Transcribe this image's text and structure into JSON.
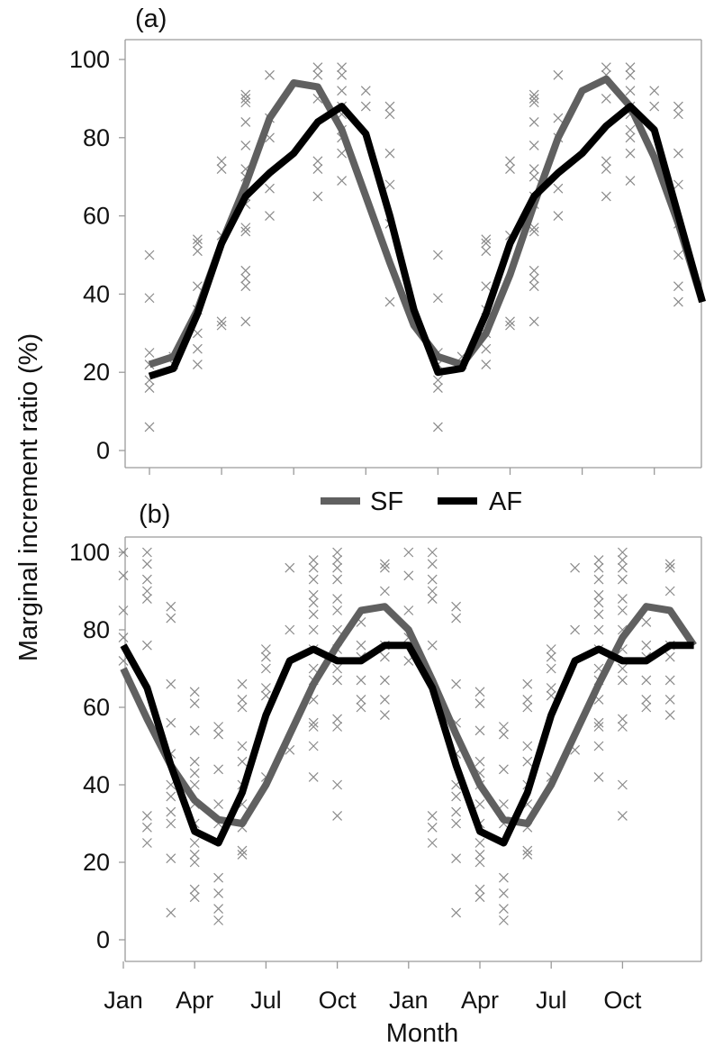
{
  "colors": {
    "SF": "#606060",
    "AF": "#000000",
    "obs": "#8a8a8a",
    "axis": "#9a9a9a"
  },
  "axes": {
    "ylabel": "Marginal increment ratio (%)",
    "xlabel": "Month"
  },
  "legend": [
    {
      "name": "SF"
    },
    {
      "name": "AF"
    }
  ],
  "chart_data": [
    {
      "type": "line",
      "panel": "(a)",
      "ylim": [
        0,
        100
      ],
      "yticks": [
        0,
        20,
        40,
        60,
        80,
        100
      ],
      "grid": false,
      "legend_placement": "between panels",
      "series": [
        {
          "name": "SF",
          "values": [
            22,
            24,
            36,
            53,
            68,
            85,
            94,
            93,
            82,
            65,
            48,
            32,
            24,
            22,
            30,
            45,
            63,
            80,
            92,
            95,
            88,
            75,
            58,
            38
          ]
        },
        {
          "name": "AF",
          "values": [
            19,
            21,
            35,
            53,
            65,
            71,
            76,
            84,
            88,
            81,
            60,
            36,
            20,
            21,
            35,
            53,
            65,
            71,
            76,
            83,
            88,
            82,
            60,
            38
          ]
        }
      ],
      "observations": [
        [
          1,
          25
        ],
        [
          1,
          22
        ],
        [
          1,
          18
        ],
        [
          1,
          16
        ],
        [
          1,
          39
        ],
        [
          1,
          50
        ],
        [
          1,
          6
        ],
        [
          2,
          22
        ],
        [
          2,
          24
        ],
        [
          3,
          22
        ],
        [
          3,
          26
        ],
        [
          3,
          30
        ],
        [
          3,
          36
        ],
        [
          3,
          42
        ],
        [
          3,
          51
        ],
        [
          3,
          53
        ],
        [
          3,
          54
        ],
        [
          4,
          33
        ],
        [
          4,
          32
        ],
        [
          4,
          72
        ],
        [
          4,
          74
        ],
        [
          4,
          55
        ],
        [
          5,
          33
        ],
        [
          5,
          42
        ],
        [
          5,
          44
        ],
        [
          5,
          46
        ],
        [
          5,
          56
        ],
        [
          5,
          57
        ],
        [
          5,
          63
        ],
        [
          5,
          65
        ],
        [
          5,
          70
        ],
        [
          5,
          72
        ],
        [
          5,
          78
        ],
        [
          5,
          84
        ],
        [
          5,
          89
        ],
        [
          5,
          90
        ],
        [
          5,
          91
        ],
        [
          6,
          60
        ],
        [
          6,
          67
        ],
        [
          6,
          80
        ],
        [
          6,
          85
        ],
        [
          6,
          96
        ],
        [
          8,
          65
        ],
        [
          8,
          72
        ],
        [
          8,
          74
        ],
        [
          8,
          90
        ],
        [
          8,
          96
        ],
        [
          8,
          98
        ],
        [
          9,
          69
        ],
        [
          9,
          76
        ],
        [
          9,
          80
        ],
        [
          9,
          82
        ],
        [
          9,
          86
        ],
        [
          9,
          88
        ],
        [
          9,
          92
        ],
        [
          9,
          96
        ],
        [
          9,
          98
        ],
        [
          10,
          92
        ],
        [
          10,
          88
        ],
        [
          11,
          86
        ],
        [
          11,
          88
        ],
        [
          11,
          76
        ],
        [
          11,
          68
        ],
        [
          11,
          58
        ],
        [
          11,
          38
        ],
        [
          13,
          50
        ],
        [
          13,
          39
        ],
        [
          13,
          25
        ],
        [
          13,
          22
        ],
        [
          13,
          18
        ],
        [
          13,
          16
        ],
        [
          13,
          6
        ],
        [
          14,
          22
        ],
        [
          14,
          24
        ],
        [
          15,
          22
        ],
        [
          15,
          26
        ],
        [
          15,
          30
        ],
        [
          15,
          36
        ],
        [
          15,
          42
        ],
        [
          15,
          51
        ],
        [
          15,
          53
        ],
        [
          15,
          54
        ],
        [
          16,
          33
        ],
        [
          16,
          32
        ],
        [
          16,
          72
        ],
        [
          16,
          74
        ],
        [
          16,
          55
        ],
        [
          17,
          33
        ],
        [
          17,
          42
        ],
        [
          17,
          44
        ],
        [
          17,
          46
        ],
        [
          17,
          56
        ],
        [
          17,
          57
        ],
        [
          17,
          63
        ],
        [
          17,
          65
        ],
        [
          17,
          70
        ],
        [
          17,
          72
        ],
        [
          17,
          78
        ],
        [
          17,
          84
        ],
        [
          17,
          89
        ],
        [
          17,
          90
        ],
        [
          17,
          91
        ],
        [
          18,
          60
        ],
        [
          18,
          67
        ],
        [
          18,
          80
        ],
        [
          18,
          85
        ],
        [
          18,
          96
        ],
        [
          20,
          65
        ],
        [
          20,
          72
        ],
        [
          20,
          74
        ],
        [
          20,
          90
        ],
        [
          20,
          96
        ],
        [
          20,
          98
        ],
        [
          21,
          69
        ],
        [
          21,
          76
        ],
        [
          21,
          80
        ],
        [
          21,
          82
        ],
        [
          21,
          86
        ],
        [
          21,
          88
        ],
        [
          21,
          92
        ],
        [
          21,
          96
        ],
        [
          21,
          98
        ],
        [
          22,
          92
        ],
        [
          22,
          88
        ],
        [
          23,
          86
        ],
        [
          23,
          88
        ],
        [
          23,
          76
        ],
        [
          23,
          68
        ],
        [
          23,
          58
        ],
        [
          23,
          38
        ],
        [
          23,
          42
        ],
        [
          23,
          50
        ]
      ]
    },
    {
      "type": "line",
      "panel": "(b)",
      "ylim": [
        0,
        100
      ],
      "yticks": [
        0,
        20,
        40,
        60,
        80,
        100
      ],
      "grid": false,
      "x_tick_labels": [
        "Jan",
        "Apr",
        "Jul",
        "Oct",
        "Jan",
        "Apr",
        "Jul",
        "Oct"
      ],
      "series": [
        {
          "name": "SF",
          "values": [
            70,
            57,
            45,
            36,
            31,
            30,
            40,
            53,
            66,
            76,
            85,
            86,
            80,
            67,
            53,
            40,
            31,
            30,
            40,
            53,
            66,
            78,
            86,
            85,
            76
          ]
        },
        {
          "name": "AF",
          "values": [
            76,
            65,
            45,
            28,
            25,
            38,
            58,
            72,
            75,
            72,
            72,
            76,
            76,
            65,
            45,
            28,
            25,
            38,
            58,
            72,
            75,
            72,
            72,
            76,
            76
          ]
        }
      ],
      "observations": [
        [
          1,
          100
        ],
        [
          1,
          94
        ],
        [
          1,
          85
        ],
        [
          1,
          78
        ],
        [
          1,
          72
        ],
        [
          2,
          100
        ],
        [
          2,
          97
        ],
        [
          2,
          93
        ],
        [
          2,
          90
        ],
        [
          2,
          88
        ],
        [
          2,
          76
        ],
        [
          2,
          32
        ],
        [
          2,
          29
        ],
        [
          2,
          25
        ],
        [
          3,
          86
        ],
        [
          3,
          83
        ],
        [
          3,
          66
        ],
        [
          3,
          56
        ],
        [
          3,
          48
        ],
        [
          3,
          40
        ],
        [
          3,
          37
        ],
        [
          3,
          33
        ],
        [
          3,
          30
        ],
        [
          3,
          21
        ],
        [
          3,
          7
        ],
        [
          4,
          64
        ],
        [
          4,
          61
        ],
        [
          4,
          54
        ],
        [
          4,
          46
        ],
        [
          4,
          43
        ],
        [
          4,
          40
        ],
        [
          4,
          35
        ],
        [
          4,
          30
        ],
        [
          4,
          25
        ],
        [
          4,
          22
        ],
        [
          4,
          20
        ],
        [
          4,
          13
        ],
        [
          4,
          11
        ],
        [
          5,
          55
        ],
        [
          5,
          53
        ],
        [
          5,
          44
        ],
        [
          5,
          35
        ],
        [
          5,
          30
        ],
        [
          5,
          16
        ],
        [
          5,
          12
        ],
        [
          5,
          8
        ],
        [
          5,
          5
        ],
        [
          6,
          66
        ],
        [
          6,
          62
        ],
        [
          6,
          60
        ],
        [
          6,
          50
        ],
        [
          6,
          46
        ],
        [
          6,
          40
        ],
        [
          6,
          35
        ],
        [
          6,
          29
        ],
        [
          6,
          23
        ],
        [
          6,
          22
        ],
        [
          7,
          75
        ],
        [
          7,
          73
        ],
        [
          7,
          70
        ],
        [
          7,
          65
        ],
        [
          7,
          63
        ],
        [
          7,
          42
        ],
        [
          8,
          96
        ],
        [
          8,
          80
        ],
        [
          8,
          49
        ],
        [
          9,
          98
        ],
        [
          9,
          96
        ],
        [
          9,
          93
        ],
        [
          9,
          89
        ],
        [
          9,
          87
        ],
        [
          9,
          84
        ],
        [
          9,
          80
        ],
        [
          9,
          75
        ],
        [
          9,
          70
        ],
        [
          9,
          67
        ],
        [
          9,
          62
        ],
        [
          9,
          56
        ],
        [
          9,
          55
        ],
        [
          9,
          50
        ],
        [
          9,
          42
        ],
        [
          10,
          100
        ],
        [
          10,
          98
        ],
        [
          10,
          96
        ],
        [
          10,
          93
        ],
        [
          10,
          88
        ],
        [
          10,
          85
        ],
        [
          10,
          80
        ],
        [
          10,
          75
        ],
        [
          10,
          70
        ],
        [
          10,
          67
        ],
        [
          10,
          57
        ],
        [
          10,
          55
        ],
        [
          10,
          40
        ],
        [
          10,
          32
        ],
        [
          11,
          82
        ],
        [
          11,
          76
        ],
        [
          11,
          73
        ],
        [
          11,
          67
        ],
        [
          11,
          62
        ],
        [
          11,
          60
        ],
        [
          12,
          97
        ],
        [
          12,
          96
        ],
        [
          12,
          90
        ],
        [
          12,
          76
        ],
        [
          12,
          73
        ],
        [
          12,
          67
        ],
        [
          12,
          62
        ],
        [
          12,
          58
        ],
        [
          13,
          100
        ],
        [
          13,
          94
        ],
        [
          13,
          85
        ],
        [
          13,
          78
        ],
        [
          13,
          72
        ],
        [
          14,
          100
        ],
        [
          14,
          97
        ],
        [
          14,
          93
        ],
        [
          14,
          90
        ],
        [
          14,
          88
        ],
        [
          14,
          76
        ],
        [
          14,
          32
        ],
        [
          14,
          29
        ],
        [
          14,
          25
        ],
        [
          15,
          86
        ],
        [
          15,
          83
        ],
        [
          15,
          66
        ],
        [
          15,
          56
        ],
        [
          15,
          48
        ],
        [
          15,
          40
        ],
        [
          15,
          37
        ],
        [
          15,
          33
        ],
        [
          15,
          30
        ],
        [
          15,
          21
        ],
        [
          15,
          7
        ],
        [
          16,
          64
        ],
        [
          16,
          61
        ],
        [
          16,
          54
        ],
        [
          16,
          46
        ],
        [
          16,
          43
        ],
        [
          16,
          40
        ],
        [
          16,
          35
        ],
        [
          16,
          30
        ],
        [
          16,
          25
        ],
        [
          16,
          22
        ],
        [
          16,
          20
        ],
        [
          16,
          13
        ],
        [
          16,
          11
        ],
        [
          17,
          55
        ],
        [
          17,
          53
        ],
        [
          17,
          44
        ],
        [
          17,
          35
        ],
        [
          17,
          30
        ],
        [
          17,
          16
        ],
        [
          17,
          12
        ],
        [
          17,
          8
        ],
        [
          17,
          5
        ],
        [
          18,
          66
        ],
        [
          18,
          62
        ],
        [
          18,
          60
        ],
        [
          18,
          50
        ],
        [
          18,
          46
        ],
        [
          18,
          40
        ],
        [
          18,
          35
        ],
        [
          18,
          29
        ],
        [
          18,
          23
        ],
        [
          18,
          22
        ],
        [
          19,
          75
        ],
        [
          19,
          73
        ],
        [
          19,
          70
        ],
        [
          19,
          65
        ],
        [
          19,
          63
        ],
        [
          19,
          42
        ],
        [
          20,
          96
        ],
        [
          20,
          80
        ],
        [
          20,
          49
        ],
        [
          21,
          98
        ],
        [
          21,
          96
        ],
        [
          21,
          93
        ],
        [
          21,
          89
        ],
        [
          21,
          87
        ],
        [
          21,
          84
        ],
        [
          21,
          80
        ],
        [
          21,
          75
        ],
        [
          21,
          70
        ],
        [
          21,
          67
        ],
        [
          21,
          62
        ],
        [
          21,
          56
        ],
        [
          21,
          55
        ],
        [
          21,
          50
        ],
        [
          21,
          42
        ],
        [
          22,
          100
        ],
        [
          22,
          98
        ],
        [
          22,
          96
        ],
        [
          22,
          93
        ],
        [
          22,
          88
        ],
        [
          22,
          85
        ],
        [
          22,
          80
        ],
        [
          22,
          75
        ],
        [
          22,
          70
        ],
        [
          22,
          67
        ],
        [
          22,
          57
        ],
        [
          22,
          55
        ],
        [
          22,
          40
        ],
        [
          22,
          32
        ],
        [
          23,
          82
        ],
        [
          23,
          76
        ],
        [
          23,
          73
        ],
        [
          23,
          67
        ],
        [
          23,
          62
        ],
        [
          23,
          60
        ],
        [
          24,
          97
        ],
        [
          24,
          96
        ],
        [
          24,
          90
        ],
        [
          24,
          76
        ],
        [
          24,
          73
        ],
        [
          24,
          67
        ],
        [
          24,
          62
        ],
        [
          24,
          58
        ]
      ]
    }
  ]
}
